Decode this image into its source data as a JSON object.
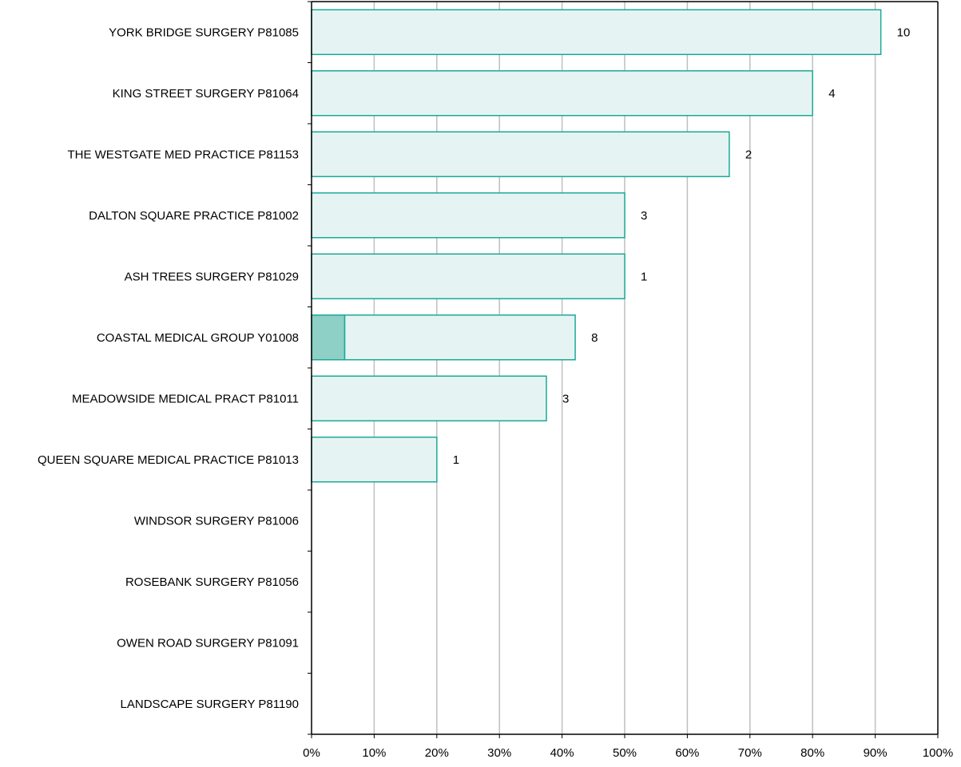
{
  "chart_data": {
    "type": "bar",
    "orientation": "horizontal",
    "stacked": true,
    "categories": [
      "YORK BRIDGE SURGERY P81085",
      "KING STREET SURGERY P81064",
      "THE WESTGATE MED PRACTICE P81153",
      "DALTON SQUARE PRACTICE P81002",
      "ASH TREES SURGERY P81029",
      "COASTAL MEDICAL GROUP Y01008",
      "MEADOWSIDE MEDICAL PRACT P81011",
      "QUEEN SQUARE MEDICAL PRACTICE P81013",
      "WINDSOR SURGERY P81006",
      "ROSEBANK SURGERY P81056",
      "OWEN ROAD SURGERY P81091",
      "LANDSCAPE SURGERY P81190"
    ],
    "series": [
      {
        "values": [
          0,
          0,
          0,
          0,
          0,
          5.3,
          0,
          0,
          0,
          0,
          0,
          0
        ],
        "color": "#8ecfc6"
      },
      {
        "values": [
          90.9,
          80,
          66.7,
          50,
          50,
          36.8,
          37.5,
          20,
          0,
          0,
          0,
          0
        ],
        "color": "#e5f4f2"
      }
    ],
    "data_labels": [
      "10",
      "4",
      "2",
      "3",
      "1",
      "8",
      "3",
      "1",
      "",
      "",
      "",
      ""
    ],
    "x_tick_labels": [
      "0%",
      "10%",
      "20%",
      "30%",
      "40%",
      "50%",
      "60%",
      "70%",
      "80%",
      "90%",
      "100%"
    ],
    "xlim": [
      0,
      100
    ],
    "xlabel": "",
    "ylabel": "",
    "title": "",
    "grid": true,
    "bar_outline_color": "#1aaa99",
    "gridline_color": "#bfbfbf"
  }
}
